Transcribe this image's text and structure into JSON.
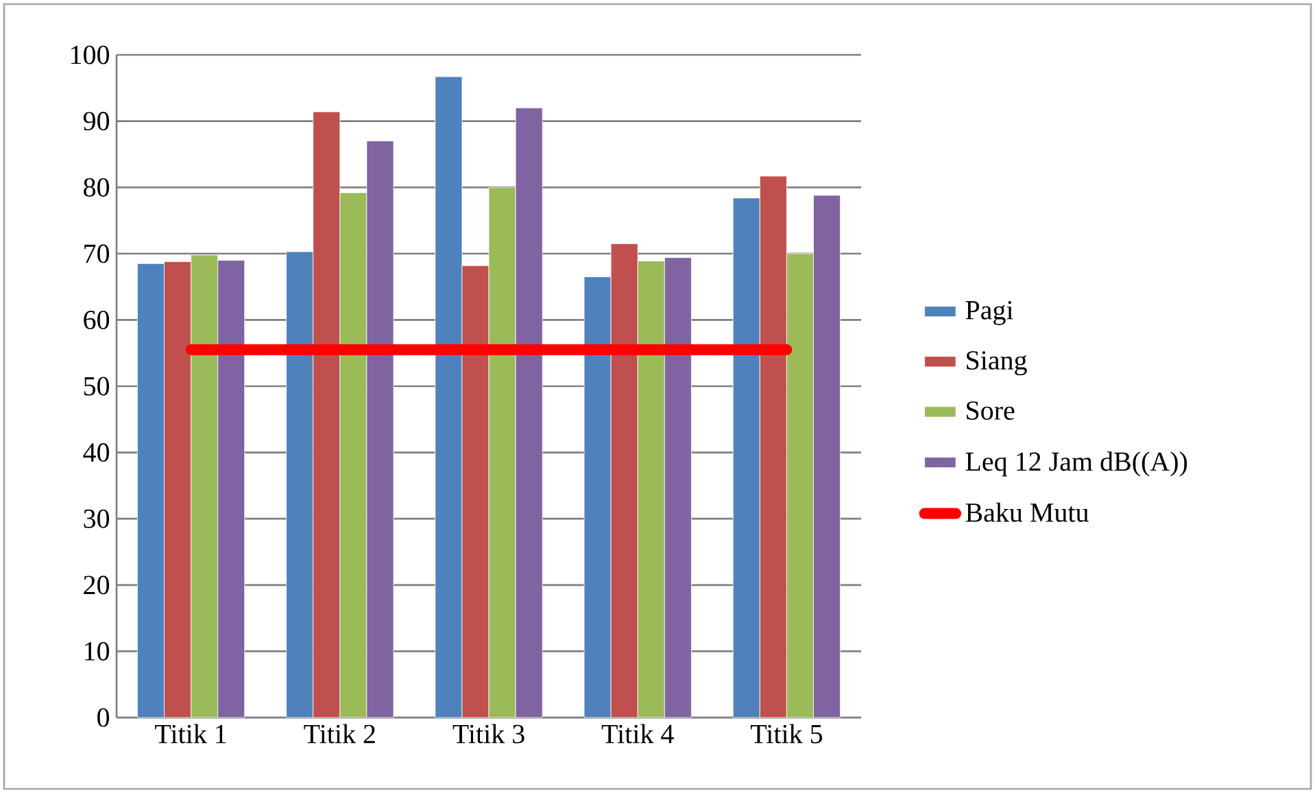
{
  "chart_data": {
    "type": "bar",
    "categories": [
      "Titik 1",
      "Titik 2",
      "Titik 3",
      "Titik 4",
      "Titik 5"
    ],
    "series": [
      {
        "name": "Pagi",
        "color": "#4f81bd",
        "values": [
          68.5,
          70.3,
          96.7,
          66.5,
          78.4
        ]
      },
      {
        "name": "Siang",
        "color": "#c0504d",
        "values": [
          68.8,
          91.4,
          68.2,
          71.5,
          81.7
        ]
      },
      {
        "name": "Sore",
        "color": "#9bbb59",
        "values": [
          69.8,
          79.2,
          80.0,
          68.9,
          70.0
        ]
      },
      {
        "name": "Leq 12 Jam dB((A))",
        "color": "#8064a2",
        "values": [
          69.0,
          87.0,
          92.0,
          69.4,
          78.8
        ]
      },
      {
        "name": "Baku Mutu",
        "type": "line",
        "color": "#ff0000",
        "values": [
          55.5,
          55.5,
          55.5,
          55.5,
          55.5
        ]
      }
    ],
    "ylim": [
      0,
      100
    ],
    "yticks": [
      0,
      10,
      20,
      30,
      40,
      50,
      60,
      70,
      80,
      90,
      100
    ],
    "grid": "y",
    "legend": "right"
  }
}
